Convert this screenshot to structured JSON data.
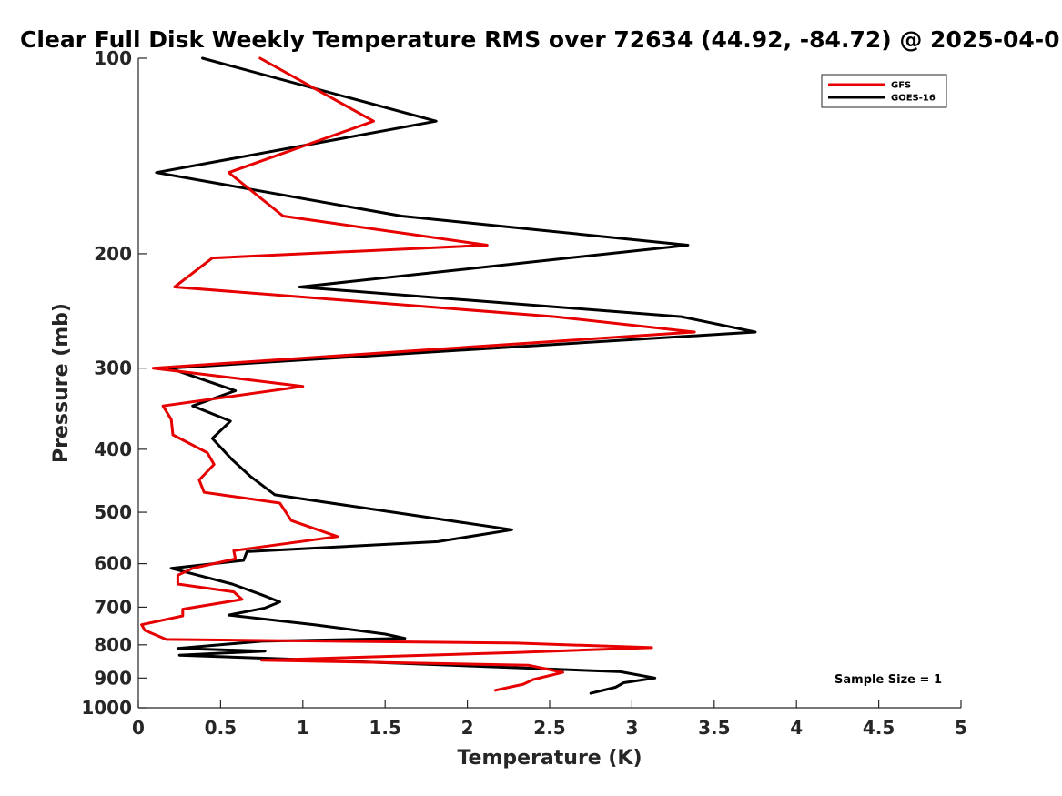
{
  "chart_data": {
    "type": "line",
    "title": "Clear Full Disk Weekly Temperature RMS over 72634 (44.92, -84.72) @ 2025-04-0",
    "xlabel": "Temperature (K)",
    "ylabel": "Pressure (mb)",
    "xlim": [
      0,
      5
    ],
    "ylim": [
      100,
      1000
    ],
    "y_scale": "log",
    "y_reversed": true,
    "x_ticks": [
      "0",
      "0.5",
      "1",
      "1.5",
      "2",
      "2.5",
      "3",
      "3.5",
      "4",
      "4.5",
      "5"
    ],
    "y_ticks": [
      "100",
      "200",
      "300",
      "400",
      "500",
      "600",
      "700",
      "800",
      "900",
      "1000"
    ],
    "legend_position": "top-right",
    "annotation": "Sample Size = 1",
    "series": [
      {
        "name": "GFS",
        "color": "#e60000",
        "points": [
          [
            0.74,
            100
          ],
          [
            1.43,
            125
          ],
          [
            0.55,
            150
          ],
          [
            0.88,
            175
          ],
          [
            2.12,
            194
          ],
          [
            0.45,
            203
          ],
          [
            0.22,
            225
          ],
          [
            2.53,
            250
          ],
          [
            3.38,
            264
          ],
          [
            0.09,
            300
          ],
          [
            1.0,
            320
          ],
          [
            0.15,
            343
          ],
          [
            0.2,
            360
          ],
          [
            0.21,
            380
          ],
          [
            0.42,
            405
          ],
          [
            0.46,
            422
          ],
          [
            0.37,
            446
          ],
          [
            0.4,
            466
          ],
          [
            0.86,
            484
          ],
          [
            0.93,
            515
          ],
          [
            1.21,
            545
          ],
          [
            0.58,
            573
          ],
          [
            0.59,
            590
          ],
          [
            0.33,
            610
          ],
          [
            0.24,
            625
          ],
          [
            0.24,
            645
          ],
          [
            0.58,
            663
          ],
          [
            0.63,
            681
          ],
          [
            0.27,
            705
          ],
          [
            0.27,
            722
          ],
          [
            0.02,
            745
          ],
          [
            0.04,
            760
          ],
          [
            0.17,
            785
          ],
          [
            2.3,
            795
          ],
          [
            3.12,
            808
          ],
          [
            2.3,
            822
          ],
          [
            0.75,
            845
          ],
          [
            2.37,
            860
          ],
          [
            2.58,
            882
          ],
          [
            2.4,
            905
          ],
          [
            2.34,
            920
          ],
          [
            2.17,
            940
          ]
        ]
      },
      {
        "name": "GOES-16",
        "color": "#000000",
        "points": [
          [
            0.39,
            100
          ],
          [
            1.81,
            125
          ],
          [
            0.11,
            150
          ],
          [
            1.6,
            175
          ],
          [
            3.34,
            194
          ],
          [
            0.98,
            225
          ],
          [
            3.3,
            250
          ],
          [
            3.75,
            264
          ],
          [
            0.19,
            300
          ],
          [
            0.59,
            325
          ],
          [
            0.33,
            343
          ],
          [
            0.56,
            362
          ],
          [
            0.45,
            385
          ],
          [
            0.57,
            415
          ],
          [
            0.68,
            440
          ],
          [
            0.83,
            470
          ],
          [
            2.27,
            532
          ],
          [
            1.82,
            555
          ],
          [
            0.66,
            575
          ],
          [
            0.64,
            593
          ],
          [
            0.2,
            610
          ],
          [
            0.57,
            645
          ],
          [
            0.75,
            670
          ],
          [
            0.86,
            687
          ],
          [
            0.77,
            702
          ],
          [
            0.55,
            720
          ],
          [
            1.07,
            745
          ],
          [
            1.5,
            770
          ],
          [
            1.62,
            782
          ],
          [
            0.75,
            790
          ],
          [
            0.24,
            810
          ],
          [
            0.77,
            818
          ],
          [
            0.25,
            830
          ],
          [
            1.0,
            843
          ],
          [
            2.93,
            880
          ],
          [
            3.14,
            900
          ],
          [
            2.95,
            915
          ],
          [
            2.9,
            930
          ],
          [
            2.75,
            950
          ]
        ]
      }
    ]
  }
}
